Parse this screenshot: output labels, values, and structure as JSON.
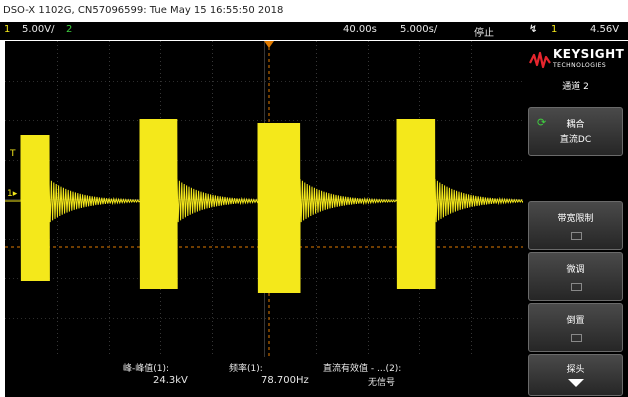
{
  "title_bar": {
    "text": "DSO-X 1102G, CN57096599: Tue May 15 16:55:50 2018"
  },
  "status": {
    "ch1_num": "1",
    "ch1_scale": "5.00V/",
    "ch2_num": "2",
    "timebase_pos": "40.00s",
    "timebase_scale": "5.000s/",
    "run_state": "停止",
    "trigger_icon": "trigger-icon",
    "trigger_channel": "1",
    "trigger_level": "4.56V"
  },
  "brand": {
    "name": "KEYSIGHT",
    "sub": "TECHNOLOGIES",
    "logo_color": "#e6262e"
  },
  "softkeys": {
    "channel_title": "通道 2",
    "coupling_top": "耦合",
    "coupling_value": "直流DC",
    "bw_limit": "带宽限制",
    "fine": "微调",
    "invert": "倒置",
    "probe": "探头"
  },
  "measurements": {
    "m1_label": "峰-峰值(1):",
    "m1_value": "24.3kV",
    "m2_label": "频率(1):",
    "m2_value": "78.700Hz",
    "m3_label": "直流有效值 - ...(2):",
    "m3_value": "无信号"
  },
  "colors": {
    "ch1": "#f4e81b",
    "ch2": "#3fcf3f",
    "trigger_line": "#e07a00",
    "grid": "#5a5a5a",
    "screen_bg": "#000000"
  }
}
